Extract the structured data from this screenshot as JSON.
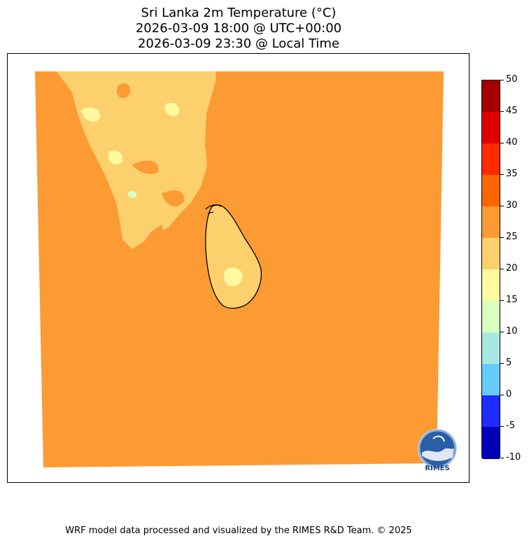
{
  "title": {
    "line1": "Sri Lanka 2m Temperature (°C)",
    "line2": "2026-03-09 18:00 @ UTC+00:00",
    "line3": "2026-03-09 23:30 @ Local Time"
  },
  "map": {
    "country": "Sri Lanka",
    "variable": "2m Temperature",
    "unit": "°C",
    "background_band": "25 to 30",
    "land_band": "20 to 25",
    "colors": {
      "sea": "#fc9a34",
      "land_warm": "#fdd06e",
      "land_cool_patch": "#fff9a0",
      "land_coldest_patch": "#d9ffc0",
      "coastline": "#000000"
    }
  },
  "colorbar": {
    "ticks": [
      "50",
      "45",
      "40",
      "35",
      "30",
      "25",
      "20",
      "15",
      "10",
      "5",
      "0",
      "-5",
      "-10"
    ],
    "colors_top_to_bottom": [
      "#a50000",
      "#e00000",
      "#ff2a00",
      "#ff6600",
      "#fc9a34",
      "#fdd06e",
      "#fff9a0",
      "#d9ffc0",
      "#a8e8e0",
      "#66ccff",
      "#1e2cff",
      "#0000b5"
    ]
  },
  "logo": {
    "text": "RIMES",
    "icon": "rimes-logo-icon"
  },
  "credit": "WRF model data processed and visualized by the RIMES R&D Team. © 2025"
}
